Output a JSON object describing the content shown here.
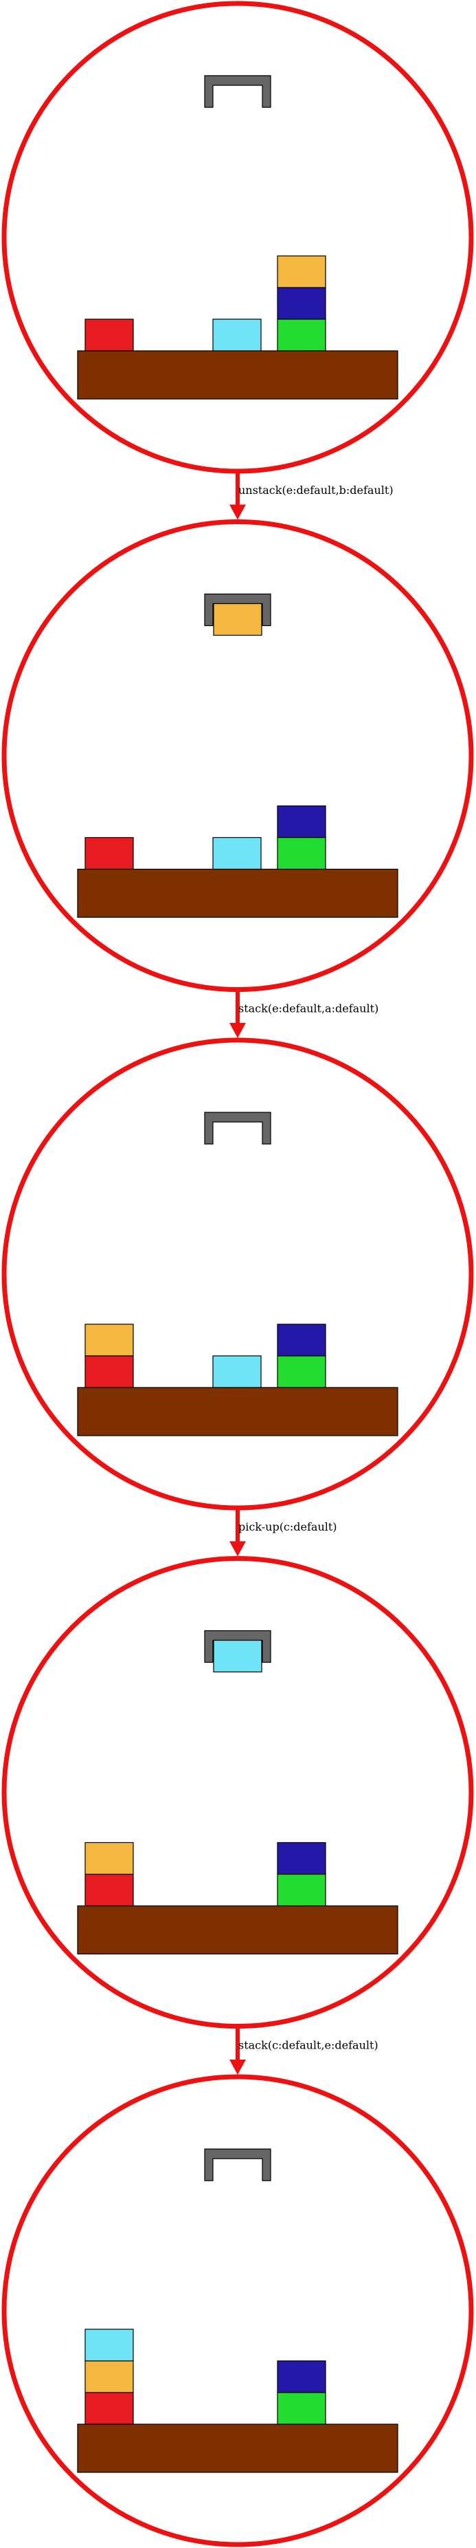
{
  "colors": {
    "circle": "#ee1111",
    "arrow": "#ee1111",
    "table": "#7f3000",
    "gripper": "#666666",
    "outline": "#000000"
  },
  "blocks": {
    "a": {
      "color": "#e81c20"
    },
    "b": {
      "color": "#2418a8"
    },
    "c": {
      "color": "#6ee4f6"
    },
    "d": {
      "color": "#22dd30"
    },
    "e": {
      "color": "#f4b840"
    }
  },
  "states": [
    {
      "id": "state-1",
      "held": null,
      "stacks": {
        "left": [
          "a"
        ],
        "mid": [
          "c"
        ],
        "right": [
          "d",
          "b",
          "e"
        ]
      }
    },
    {
      "id": "state-2",
      "held": "e",
      "stacks": {
        "left": [
          "a"
        ],
        "mid": [
          "c"
        ],
        "right": [
          "d",
          "b"
        ]
      }
    },
    {
      "id": "state-3",
      "held": null,
      "stacks": {
        "left": [
          "a",
          "e"
        ],
        "mid": [
          "c"
        ],
        "right": [
          "d",
          "b"
        ]
      }
    },
    {
      "id": "state-4",
      "held": "c",
      "stacks": {
        "left": [
          "a",
          "e"
        ],
        "mid": [],
        "right": [
          "d",
          "b"
        ]
      }
    },
    {
      "id": "state-5",
      "held": null,
      "stacks": {
        "left": [
          "a",
          "e",
          "c"
        ],
        "mid": [],
        "right": [
          "d",
          "b"
        ]
      }
    }
  ],
  "actions": [
    {
      "label": "unstack(e:default,b:default)"
    },
    {
      "label": "stack(e:default,a:default)"
    },
    {
      "label": "pick-up(c:default)"
    },
    {
      "label": "stack(c:default,e:default)"
    }
  ]
}
